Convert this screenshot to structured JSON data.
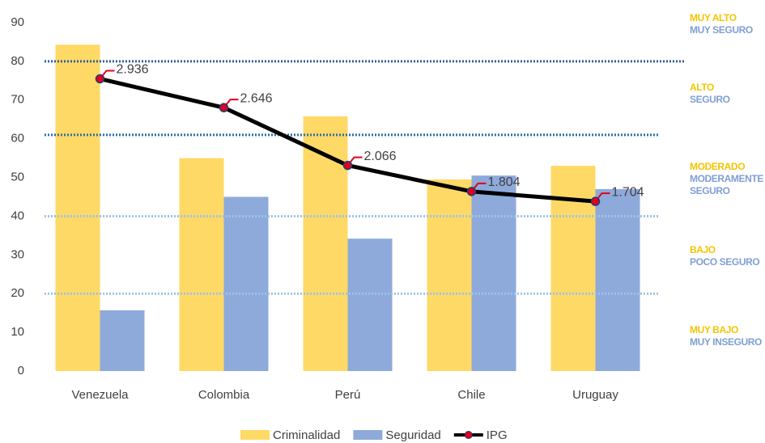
{
  "chart_data": {
    "type": "bar",
    "categories": [
      "Venezuela",
      "Colombia",
      "Perú",
      "Chile",
      "Uruguay"
    ],
    "series": [
      {
        "name": "Criminalidad",
        "color": "#ffd966",
        "values": [
          84.3,
          55,
          65.8,
          49.5,
          53
        ]
      },
      {
        "name": "Seguridad",
        "color": "#8eaadb",
        "values": [
          15.7,
          45,
          34.2,
          50.5,
          47
        ]
      },
      {
        "name": "IPG",
        "type": "line",
        "axis": "y2",
        "color": "#000000",
        "marker_color": "#e0001b",
        "values": [
          2.936,
          2.646,
          2.066,
          1.804,
          1.704
        ]
      }
    ],
    "ylim": [
      0,
      90
    ],
    "yticks": [
      0,
      10,
      20,
      30,
      40,
      50,
      60,
      70,
      80,
      90
    ],
    "y2lim": [
      0,
      3.5
    ],
    "grid": false,
    "thresholds": [
      {
        "value": 80,
        "color": "#2f5f9e"
      },
      {
        "value": 61,
        "color": "#2f6ea8"
      },
      {
        "value": 40,
        "color": "#9dc3e6"
      },
      {
        "value": 20,
        "color": "#9dc3e6"
      }
    ],
    "zones": [
      {
        "level": "MUY ALTO",
        "safety": "MUY SEGURO"
      },
      {
        "level": "ALTO",
        "safety": "SEGURO"
      },
      {
        "level": "MODERADO",
        "safety": "MODERAMENTE SEGURO"
      },
      {
        "level": "BAJO",
        "safety": "POCO SEGURO"
      },
      {
        "level": "MUY BAJO",
        "safety": "MUY INSEGURO"
      }
    ],
    "zone_colors": {
      "level": "#f5c400",
      "safety": "#7f9fd4"
    },
    "legend": "bottom"
  }
}
